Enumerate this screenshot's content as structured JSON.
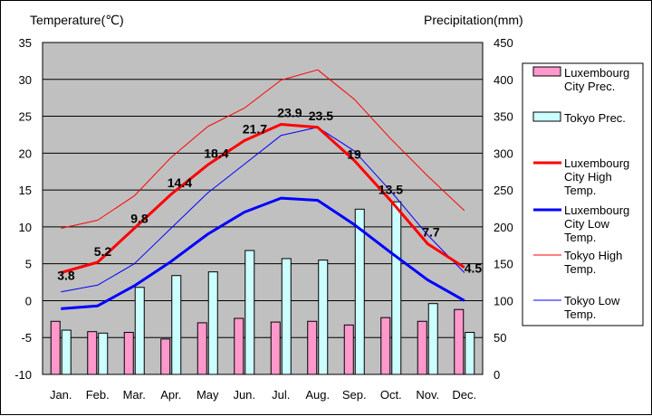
{
  "chart_data": {
    "type": "bar",
    "combo": [
      "bar",
      "line"
    ],
    "categories": [
      "Jan.",
      "Feb.",
      "Mar.",
      "Apr.",
      "May",
      "Jun.",
      "Jul.",
      "Aug.",
      "Sep.",
      "Oct.",
      "Nov.",
      "Dec."
    ],
    "left_axis": {
      "label": "Temperature(℃)",
      "ylim": [
        -10,
        35
      ],
      "ticks": [
        35,
        30,
        25,
        20,
        15,
        10,
        5,
        0,
        -5,
        -10
      ]
    },
    "right_axis": {
      "label": "Precipitation(mm)",
      "ylim": [
        0,
        450
      ],
      "ticks": [
        450,
        400,
        350,
        300,
        250,
        200,
        150,
        100,
        50,
        0
      ]
    },
    "bar_series": [
      {
        "name": "Luxembourg City Prec.",
        "legend_lines": [
          "Luxembourg",
          "City Prec."
        ],
        "color": "#ff99cc",
        "axis": "right",
        "values": [
          72,
          58,
          57,
          48,
          70,
          76,
          71,
          72,
          67,
          77,
          72,
          88
        ]
      },
      {
        "name": "Tokyo Prec.",
        "legend_lines": [
          "Tokyo Prec."
        ],
        "color": "#ccffff",
        "axis": "right",
        "values": [
          60,
          56,
          118,
          134,
          139,
          168,
          157,
          155,
          224,
          234,
          96,
          57
        ]
      }
    ],
    "line_series": [
      {
        "name": "Luxembourg City High Temp.",
        "legend_lines": [
          "Luxembourg",
          "City High",
          "Temp."
        ],
        "color": "#ff0000",
        "width": 3,
        "axis": "left",
        "values": [
          3.8,
          5.2,
          9.8,
          14.4,
          18.4,
          21.7,
          23.9,
          23.5,
          19.0,
          13.5,
          7.7,
          4.5
        ]
      },
      {
        "name": "Luxembourg City Low Temp.",
        "legend_lines": [
          "Luxembourg",
          "City Low",
          "Temp."
        ],
        "color": "#0000ff",
        "width": 3,
        "axis": "left",
        "values": [
          -1.1,
          -0.7,
          2.0,
          5.3,
          9.0,
          12.0,
          13.9,
          13.6,
          10.3,
          6.5,
          2.8,
          0.0
        ]
      },
      {
        "name": "Tokyo High Temp.",
        "legend_lines": [
          "Tokyo High",
          "Temp."
        ],
        "color": "#ff0000",
        "width": 1,
        "axis": "left",
        "values": [
          9.8,
          10.9,
          14.2,
          19.4,
          23.6,
          26.1,
          29.9,
          31.3,
          27.3,
          21.9,
          16.9,
          12.2
        ]
      },
      {
        "name": "Tokyo Low Temp.",
        "legend_lines": [
          "Tokyo Low",
          "Temp."
        ],
        "color": "#0000ff",
        "width": 1,
        "axis": "left",
        "values": [
          1.2,
          2.1,
          5.0,
          9.8,
          14.6,
          18.5,
          22.4,
          23.5,
          20.3,
          14.8,
          8.9,
          3.8
        ]
      }
    ],
    "data_labels": [
      {
        "text": "3.8",
        "series": "Luxembourg City High Temp.",
        "index": 0
      },
      {
        "text": "5.2",
        "series": "Luxembourg City High Temp.",
        "index": 1
      },
      {
        "text": "9.8",
        "series": "Luxembourg City High Temp.",
        "index": 2
      },
      {
        "text": "14.4",
        "series": "Luxembourg City High Temp.",
        "index": 3
      },
      {
        "text": "18.4",
        "series": "Luxembourg City High Temp.",
        "index": 4
      },
      {
        "text": "21.7",
        "series": "Luxembourg City High Temp.",
        "index": 5
      },
      {
        "text": "23.9",
        "series": "Luxembourg City High Temp.",
        "index": 6
      },
      {
        "text": "23.5",
        "series": "Luxembourg City High Temp.",
        "index": 7
      },
      {
        "text": "19",
        "series": "Luxembourg City High Temp.",
        "index": 8
      },
      {
        "text": "13.5",
        "series": "Luxembourg City High Temp.",
        "index": 9
      },
      {
        "text": "7.7",
        "series": "Luxembourg City High Temp.",
        "index": 10
      },
      {
        "text": "4.5",
        "series": "Luxembourg City High Temp.",
        "index": 11
      }
    ],
    "grid": "horizontal",
    "legend_position": "right",
    "plot_background": "#c0c0c0"
  }
}
